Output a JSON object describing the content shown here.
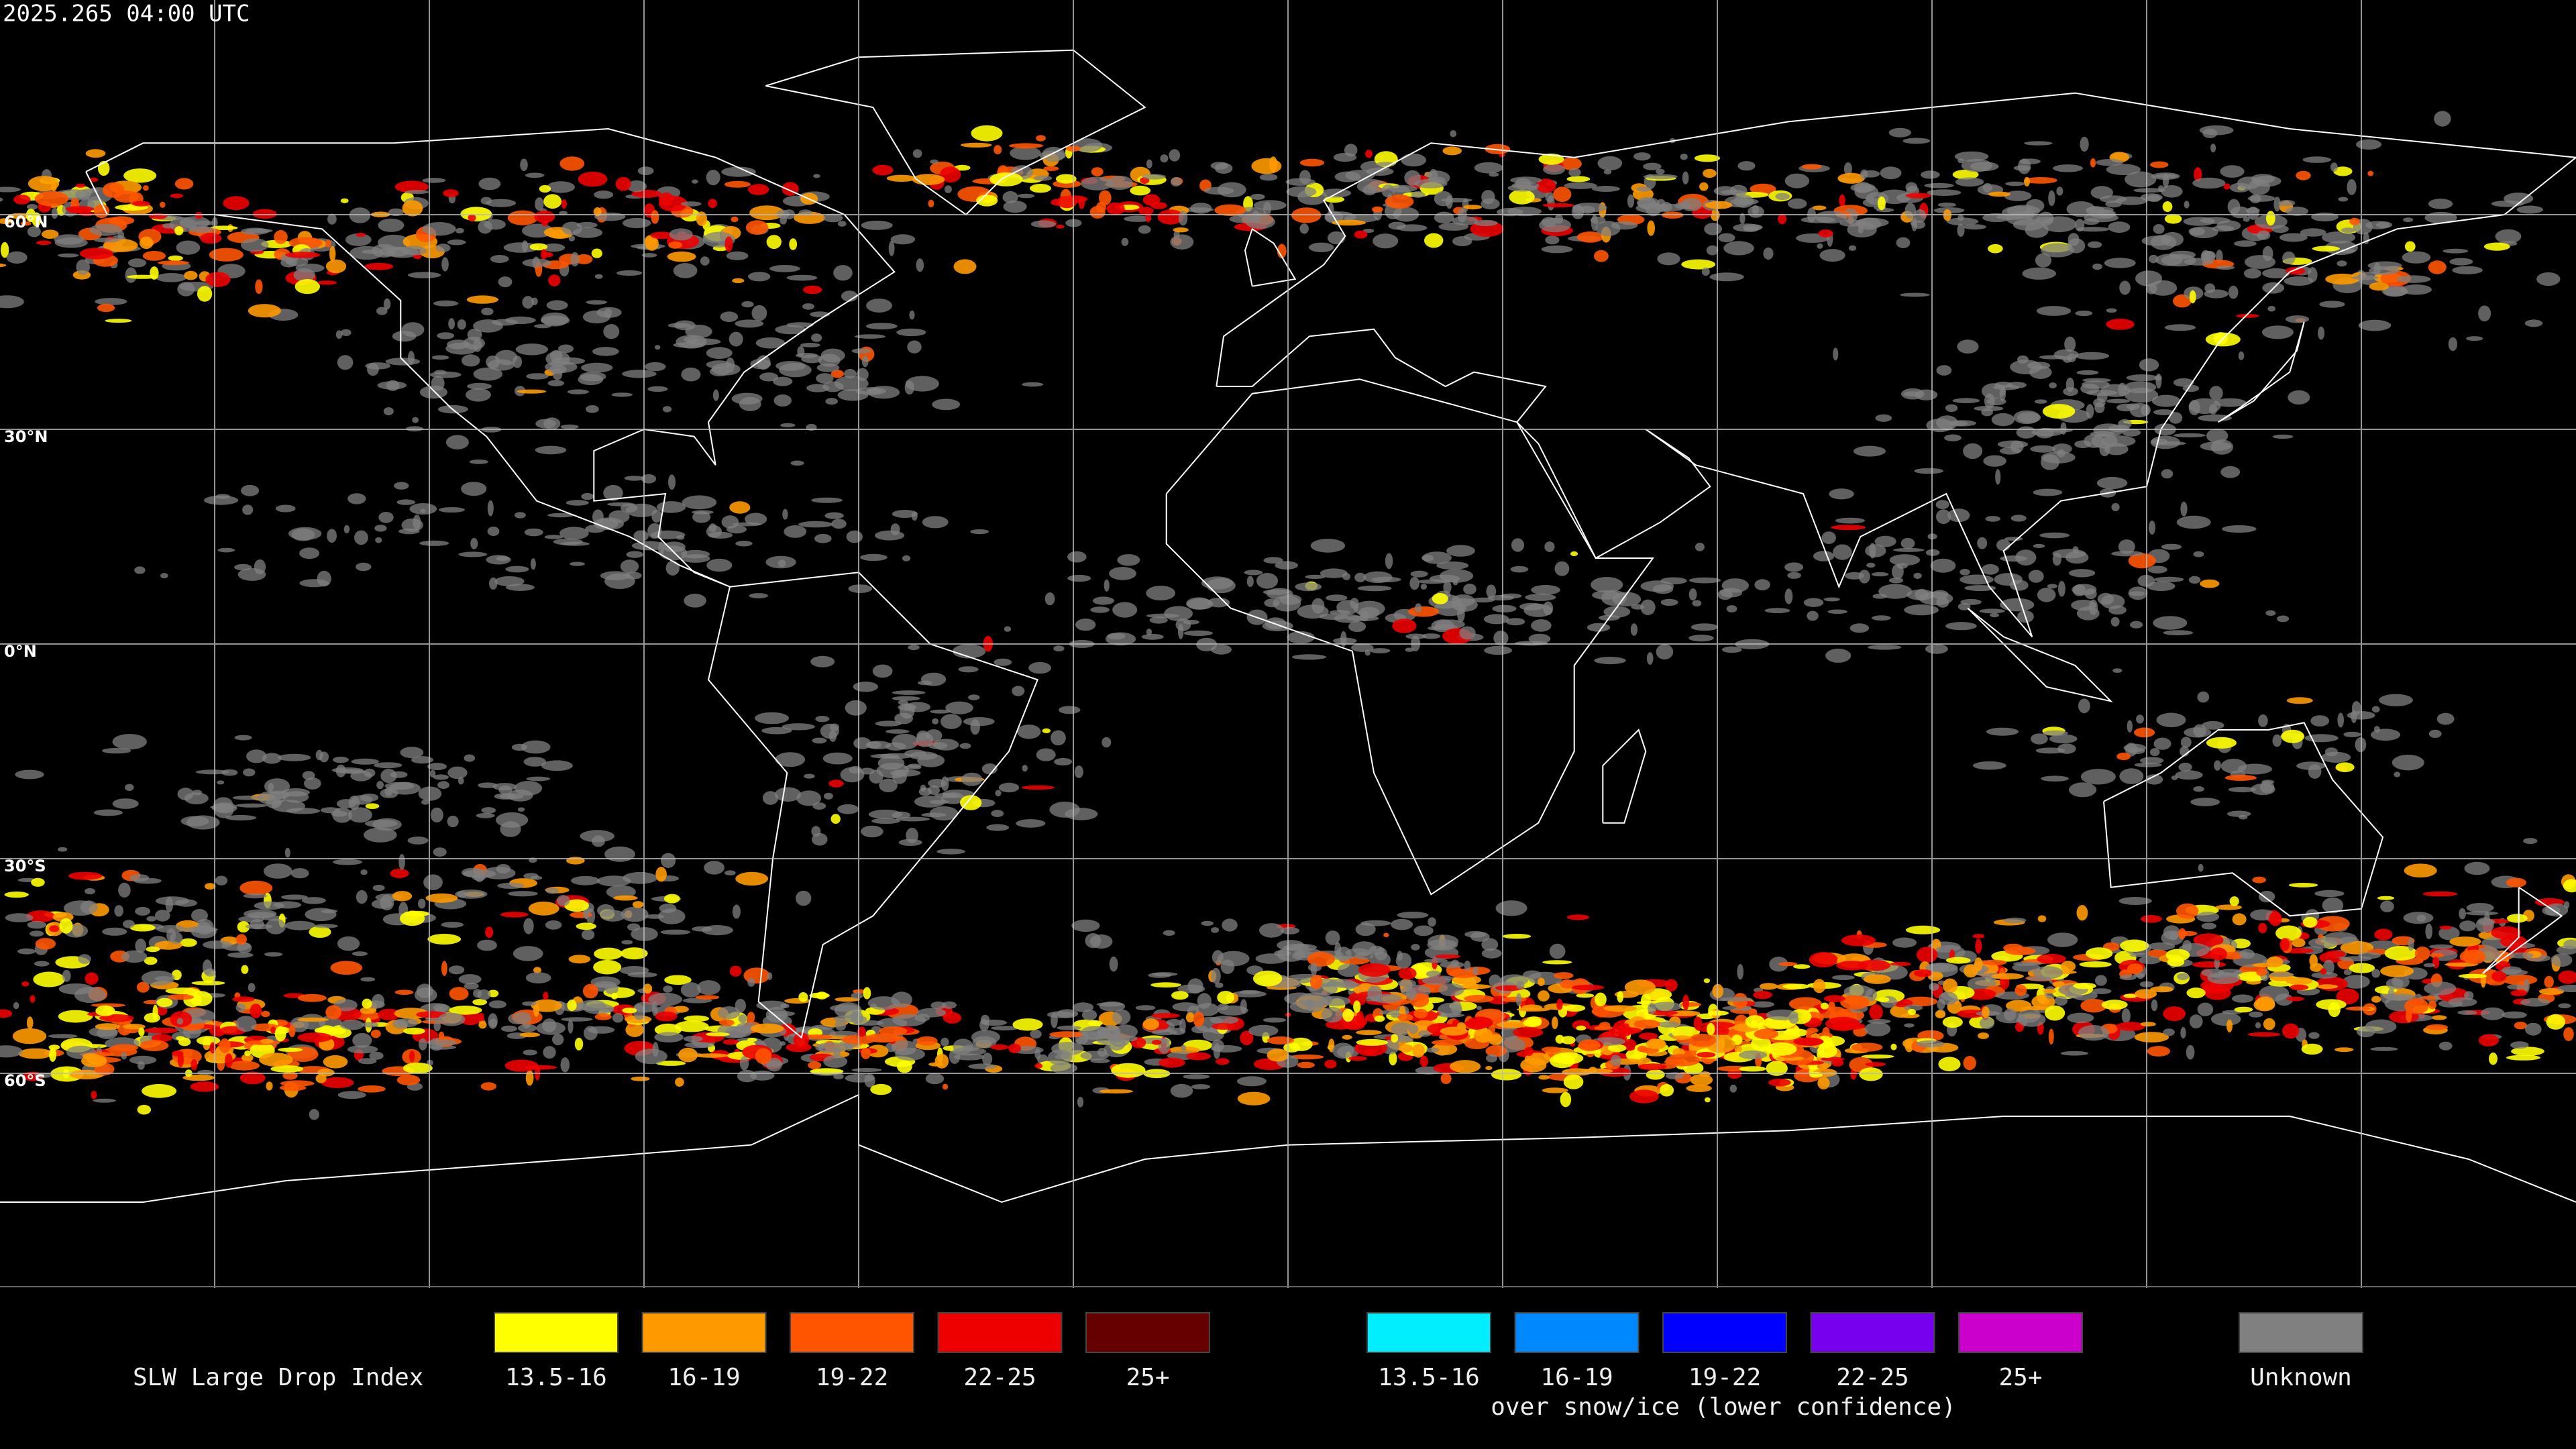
{
  "header": {
    "timestamp": "2025.265 04:00 UTC"
  },
  "map": {
    "latitude_labels": [
      "60°N",
      "30°N",
      "0°N",
      "30°S",
      "60°S"
    ]
  },
  "legend": {
    "title": "SLW Large Drop Index",
    "liquid": {
      "items": [
        {
          "label": "13.5-16",
          "color": "#ffff00"
        },
        {
          "label": "16-19",
          "color": "#ff9900"
        },
        {
          "label": "19-22",
          "color": "#ff5500"
        },
        {
          "label": "22-25",
          "color": "#ee0000"
        },
        {
          "label": "25+",
          "color": "#660000"
        }
      ]
    },
    "snow_ice": {
      "items": [
        {
          "label": "13.5-16",
          "color": "#00eeff"
        },
        {
          "label": "16-19",
          "color": "#0088ff"
        },
        {
          "label": "19-22",
          "color": "#0000ff"
        },
        {
          "label": "22-25",
          "color": "#7700ee"
        },
        {
          "label": "25+",
          "color": "#cc00cc"
        }
      ],
      "caption": "over snow/ice (lower confidence)"
    },
    "unknown": {
      "label": "Unknown",
      "color": "#808080"
    }
  }
}
